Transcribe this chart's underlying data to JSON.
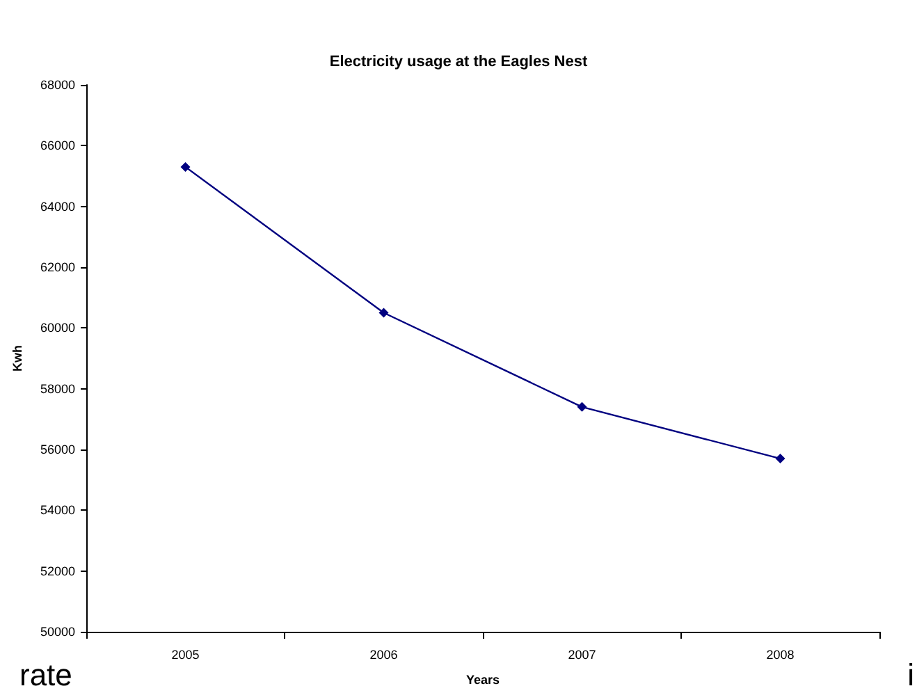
{
  "chart_data": {
    "type": "line",
    "title": "Electricity usage at the Eagles Nest",
    "xlabel": "Years",
    "ylabel": "Kwh",
    "categories": [
      "2005",
      "2006",
      "2007",
      "2008"
    ],
    "series": [
      {
        "color": "#000080",
        "values": [
          65300,
          60500,
          57400,
          55700
        ]
      }
    ],
    "ylim": [
      50000,
      68000
    ],
    "yticks": [
      50000,
      52000,
      54000,
      56000,
      58000,
      60000,
      62000,
      64000,
      66000,
      68000
    ],
    "grid": false,
    "marker": "diamond",
    "line_style": "solid",
    "annotations": [
      "rate",
      "i"
    ]
  }
}
